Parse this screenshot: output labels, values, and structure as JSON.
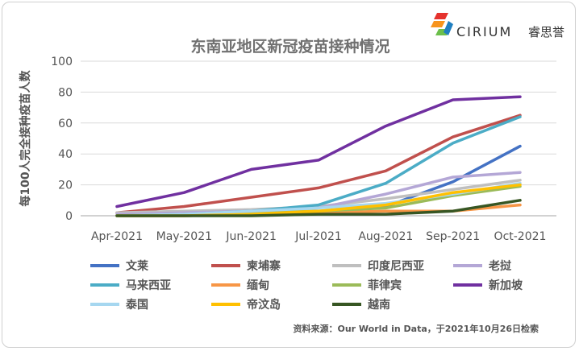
{
  "brand": {
    "name": "CIRIUM",
    "name_cn": "睿思誉"
  },
  "source_note": "资料来源：Our World in Data，于2021年10月26日检索",
  "chart_data": {
    "type": "line",
    "title": "东南亚地区新冠疫苗接种情况",
    "xlabel": "",
    "ylabel": "每100人完全接种疫苗人数",
    "x": [
      "Apr-2021",
      "May-2021",
      "Jun-2021",
      "Jul-2021",
      "Aug-2021",
      "Sep-2021",
      "Oct-2021"
    ],
    "ylim": [
      0,
      100
    ],
    "yticks": [
      0,
      20,
      40,
      60,
      80,
      100
    ],
    "grid": true,
    "legend_position": "bottom",
    "series": [
      {
        "name": "文莱",
        "color": "#4472c4",
        "values": [
          0,
          0,
          1,
          2,
          6,
          22,
          45
        ]
      },
      {
        "name": "柬埔寨",
        "color": "#c0504d",
        "values": [
          2,
          6,
          12,
          18,
          29,
          51,
          65
        ]
      },
      {
        "name": "印度尼西亚",
        "color": "#bfbfbf",
        "values": [
          2,
          3,
          4,
          6,
          11,
          17,
          23
        ]
      },
      {
        "name": "老挝",
        "color": "#b4a7d6",
        "values": [
          1,
          2,
          3,
          5,
          14,
          25,
          28
        ]
      },
      {
        "name": "马来西亚",
        "color": "#4bacc6",
        "values": [
          0,
          1,
          3,
          7,
          21,
          47,
          64
        ]
      },
      {
        "name": "缅甸",
        "color": "#f79646",
        "values": [
          0,
          0,
          1,
          2,
          3,
          3,
          7
        ]
      },
      {
        "name": "菲律宾",
        "color": "#9bbb59",
        "values": [
          0,
          1,
          2,
          3,
          5,
          13,
          19
        ]
      },
      {
        "name": "新加坡",
        "color": "#7030a0",
        "values": [
          6,
          15,
          30,
          36,
          58,
          75,
          77
        ]
      },
      {
        "name": "泰国",
        "color": "#a6d7f0",
        "values": [
          0,
          1,
          3,
          5,
          8,
          14,
          21
        ]
      },
      {
        "name": "帝汶岛",
        "color": "#ffc000",
        "values": [
          0,
          0,
          1,
          3,
          7,
          15,
          20
        ]
      },
      {
        "name": "越南",
        "color": "#375623",
        "values": [
          0,
          0,
          0,
          1,
          1,
          3,
          10
        ]
      }
    ]
  }
}
